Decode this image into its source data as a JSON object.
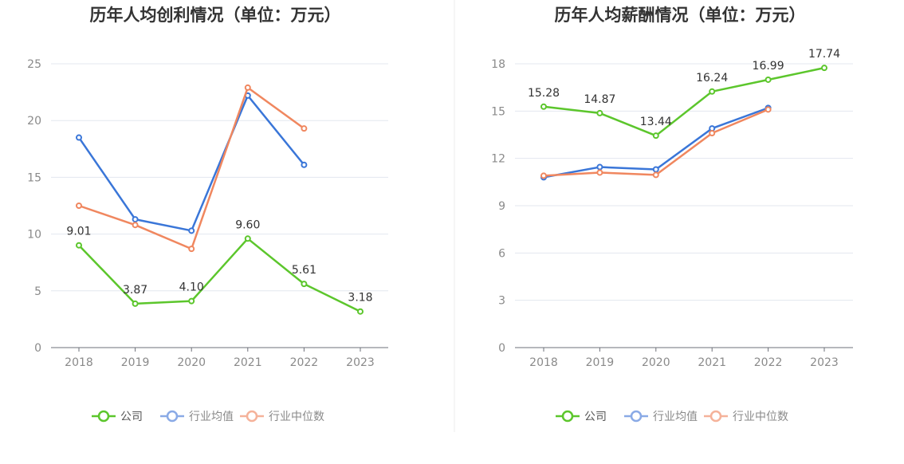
{
  "chart_data": [
    {
      "type": "line",
      "title": "历年人均创利情况（单位：万元）",
      "categories": [
        "2018",
        "2019",
        "2020",
        "2021",
        "2022",
        "2023"
      ],
      "ylim": [
        0,
        25
      ],
      "yticks": [
        0,
        5,
        10,
        15,
        20,
        25
      ],
      "grid": true,
      "legend_position": "bottom",
      "series": [
        {
          "name": "公司",
          "color": "#5cc62c",
          "values": [
            9.01,
            3.87,
            4.1,
            9.6,
            5.61,
            3.18
          ],
          "labels": [
            "9.01",
            "3.87",
            "4.10",
            "9.60",
            "5.61",
            "3.18"
          ]
        },
        {
          "name": "行业均值",
          "color": "#3a76d8",
          "values": [
            18.5,
            11.3,
            10.3,
            22.2,
            16.1,
            null
          ]
        },
        {
          "name": "行业中位数",
          "color": "#f0875f",
          "values": [
            12.5,
            10.8,
            8.7,
            22.9,
            19.3,
            null
          ]
        }
      ]
    },
    {
      "type": "line",
      "title": "历年人均薪酬情况（单位：万元）",
      "categories": [
        "2018",
        "2019",
        "2020",
        "2021",
        "2022",
        "2023"
      ],
      "ylim": [
        0,
        18
      ],
      "yticks": [
        0,
        3,
        6,
        9,
        12,
        15,
        18
      ],
      "grid": true,
      "legend_position": "bottom",
      "series": [
        {
          "name": "公司",
          "color": "#5cc62c",
          "values": [
            15.28,
            14.87,
            13.44,
            16.24,
            16.99,
            17.74
          ],
          "labels": [
            "15.28",
            "14.87",
            "13.44",
            "16.24",
            "16.99",
            "17.74"
          ]
        },
        {
          "name": "行业均值",
          "color": "#3a76d8",
          "values": [
            10.8,
            11.45,
            11.3,
            13.9,
            15.2,
            null
          ]
        },
        {
          "name": "行业中位数",
          "color": "#f0875f",
          "values": [
            10.9,
            11.1,
            10.95,
            13.6,
            15.1,
            null
          ]
        }
      ]
    }
  ],
  "legend": [
    {
      "label": "公司",
      "color": "#5cc62c",
      "muted": false
    },
    {
      "label": "行业均值",
      "color": "#8aaae6",
      "muted": true
    },
    {
      "label": "行业中位数",
      "color": "#f5b29a",
      "muted": true
    }
  ]
}
